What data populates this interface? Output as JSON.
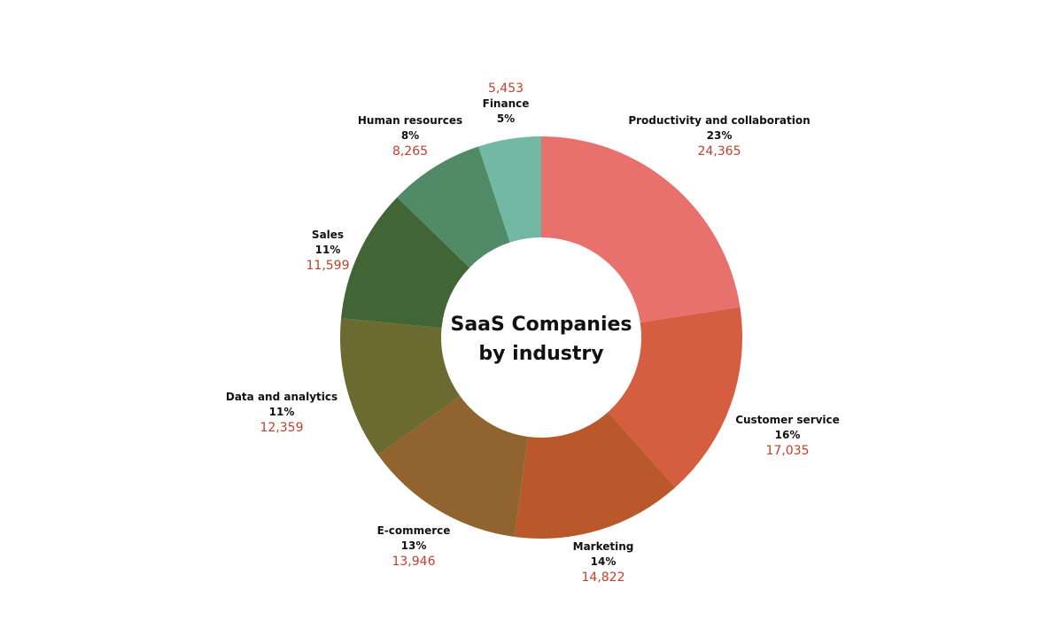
{
  "chart_data": {
    "type": "pie",
    "title": "SaaS Companies by industry",
    "title_lines": [
      "SaaS Companies",
      "by industry"
    ],
    "donut": true,
    "slices": [
      {
        "name": "Productivity and collaboration",
        "percent_label": "23%",
        "value_label": "24,365",
        "value": 24365,
        "color": "#e8716d"
      },
      {
        "name": "Customer service",
        "percent_label": "16%",
        "value_label": "17,035",
        "value": 17035,
        "color": "#d65e40"
      },
      {
        "name": "Marketing",
        "percent_label": "14%",
        "value_label": "14,822",
        "value": 14822,
        "color": "#b8582b"
      },
      {
        "name": "E-commerce",
        "percent_label": "13%",
        "value_label": "13,946",
        "value": 13946,
        "color": "#91632e"
      },
      {
        "name": "Data and analytics",
        "percent_label": "11%",
        "value_label": "12,359",
        "value": 12359,
        "color": "#6b6a31"
      },
      {
        "name": "Sales",
        "percent_label": "11%",
        "value_label": "11,599",
        "value": 11599,
        "color": "#416535"
      },
      {
        "name": "Human resources",
        "percent_label": "8%",
        "value_label": "8,265",
        "value": 8265,
        "color": "#518a67"
      },
      {
        "name": "Finance",
        "percent_label": "5%",
        "value_label": "5,453",
        "value": 5453,
        "color": "#72b8a3"
      }
    ],
    "colors": {
      "value_text": "#c0402d",
      "label_text": "#111111",
      "background": "#ffffff"
    }
  }
}
